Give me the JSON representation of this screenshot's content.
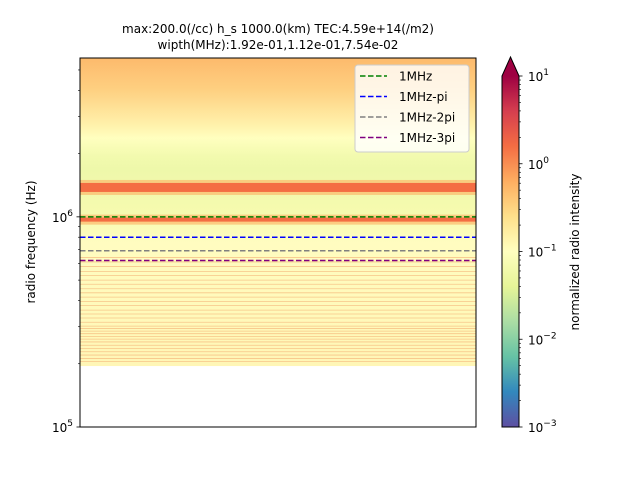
{
  "chart_data": {
    "type": "heatmap",
    "title_line1": "max:200.0(/cc) h_s 1000.0(km) TEC:4.59e+14(/m2)",
    "title_line2": "wipth(MHz):1.92e-01,1.12e-01,7.54e-02",
    "ylabel": "radio frequency (Hz)",
    "xlabel": "",
    "yscale": "log",
    "ylim": [
      100000,
      5700000
    ],
    "y_ticks": [
      {
        "value": 100000,
        "base": "10",
        "exp": "5"
      },
      {
        "value": 1000000,
        "base": "10",
        "exp": "6"
      }
    ],
    "grid": false,
    "legend_placement": "top-right",
    "series": [
      {
        "name": "1MHz",
        "y": 1000000,
        "color": "#008000"
      },
      {
        "name": "1MHz-pi",
        "y": 800000,
        "color": "#0000ff"
      },
      {
        "name": "1MHz-2pi",
        "y": 690000,
        "color": "#808080"
      },
      {
        "name": "1MHz-3pi",
        "y": 620000,
        "color": "#800080"
      }
    ],
    "intensity_profile": {
      "bottom_edge_hz": 195000,
      "bright_bands_hz": [
        1380000,
        970000
      ],
      "faint_lines_hz": [
        205000,
        212000,
        220000,
        228000,
        236000,
        245000,
        254000,
        262000,
        270000,
        278000,
        286000,
        294000,
        302000,
        315000,
        330000,
        345000,
        360000,
        378000,
        396000,
        415000,
        435000,
        455000,
        478000,
        500000,
        525000,
        550000,
        580000,
        610000,
        640000
      ]
    },
    "colorbar": {
      "label": "normalized radio intensity",
      "scale": "log",
      "range": [
        0.001,
        10
      ],
      "colormap": "Spectral_r",
      "extend": "max",
      "ticks": [
        {
          "value": 0.001,
          "base": "10",
          "exp": "−3"
        },
        {
          "value": 0.01,
          "base": "10",
          "exp": "−2"
        },
        {
          "value": 0.1,
          "base": "10",
          "exp": "−1"
        },
        {
          "value": 1,
          "base": "10",
          "exp": "0"
        },
        {
          "value": 10,
          "base": "10",
          "exp": "1"
        }
      ]
    }
  }
}
